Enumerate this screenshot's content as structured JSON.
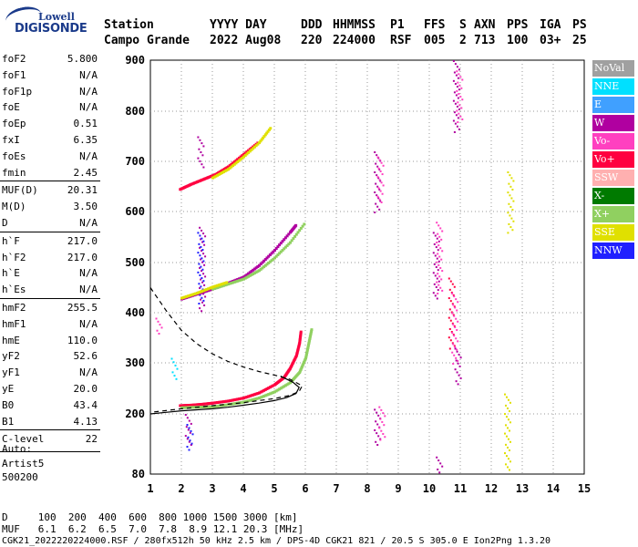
{
  "logo": {
    "line1": "Lowell",
    "line2": "DIGISONDE"
  },
  "header": {
    "station_label": "Station",
    "station_value": "Campo Grande",
    "date_label": "YYYY DAY",
    "date_value": "2022 Aug08",
    "ddd_label": "DDD",
    "ddd_value": "220",
    "time_label": "HHMMSS",
    "time_value": "224000",
    "p1_label": "P1",
    "p1_value": "RSF",
    "ffs_label": "FFS",
    "ffs_value": "005",
    "s_label": "S",
    "s_value": "2",
    "axn_label": "AXN",
    "axn_value": "713",
    "pps_label": "PPS",
    "pps_value": "100",
    "iga_label": "IGA",
    "iga_value": "03+",
    "ps_label": "PS",
    "ps_value": "25"
  },
  "params": [
    {
      "k": "foF2",
      "v": "5.800"
    },
    {
      "k": "foF1",
      "v": "N/A"
    },
    {
      "k": "foF1p",
      "v": "N/A"
    },
    {
      "k": "foE",
      "v": "N/A"
    },
    {
      "k": "foEp",
      "v": "0.51"
    },
    {
      "k": "fxI",
      "v": "6.35"
    },
    {
      "k": "foEs",
      "v": "N/A"
    },
    {
      "k": "fmin",
      "v": "2.45"
    },
    {
      "k": "MUF(D)",
      "v": "20.31"
    },
    {
      "k": "M(D)",
      "v": "3.50"
    },
    {
      "k": "D",
      "v": "N/A"
    },
    {
      "k": "h`F",
      "v": "217.0"
    },
    {
      "k": "h`F2",
      "v": "217.0"
    },
    {
      "k": "h`E",
      "v": "N/A"
    },
    {
      "k": "h`Es",
      "v": "N/A"
    },
    {
      "k": "hmF2",
      "v": "255.5"
    },
    {
      "k": "hmF1",
      "v": "N/A"
    },
    {
      "k": "hmE",
      "v": "110.0"
    },
    {
      "k": "yF2",
      "v": "52.6"
    },
    {
      "k": "yF1",
      "v": "N/A"
    },
    {
      "k": "yE",
      "v": "20.0"
    },
    {
      "k": "B0",
      "v": "43.4"
    },
    {
      "k": "B1",
      "v": "4.13"
    },
    {
      "k": "C-level",
      "v": "22"
    }
  ],
  "auto": {
    "line1": "Auto:",
    "line2": "Artist5",
    "line3": "500200"
  },
  "legend": [
    {
      "label": "NoVal",
      "color": "#a0a0a0"
    },
    {
      "label": "NNE",
      "color": "#00e0ff"
    },
    {
      "label": "E",
      "color": "#40a0ff"
    },
    {
      "label": "W",
      "color": "#b000a0"
    },
    {
      "label": "Vo-",
      "color": "#ff40c0"
    },
    {
      "label": "Vo+",
      "color": "#ff0040"
    },
    {
      "label": "SSW",
      "color": "#ffb0b0"
    },
    {
      "label": "X-",
      "color": "#007a00"
    },
    {
      "label": "X+",
      "color": "#90d060"
    },
    {
      "label": "SSE",
      "color": "#e0e000"
    },
    {
      "label": "NNW",
      "color": "#2020ff"
    }
  ],
  "bottom": {
    "d_line": "D     100  200  400  600  800 1000 1500 3000 [km]",
    "muf_line": "MUF   6.1  6.2  6.5  7.0  7.8  8.9 12.1 20.3 [MHz]",
    "footer": "CGK21_2022220224000.RSF / 280fx512h 50 kHz 2.5 km / DPS-4D CGK21 821 / 20.5 S 305.0 E Ion2Png 1.3.20"
  },
  "chart_data": {
    "type": "scatter",
    "title": "",
    "xlabel": "",
    "ylabel": "",
    "xlim": [
      1,
      15
    ],
    "ylim": [
      80,
      900
    ],
    "x_ticks": [
      1,
      2,
      3,
      4,
      5,
      6,
      7,
      8,
      9,
      10,
      11,
      12,
      13,
      14,
      15
    ],
    "y_ticks": [
      80,
      200,
      300,
      400,
      500,
      600,
      700,
      800,
      900
    ],
    "grid": "dotted",
    "traces": [
      {
        "name": "Vo-",
        "color": "#ff0040",
        "points": [
          [
            1.95,
            217
          ],
          [
            2.3,
            218
          ],
          [
            2.7,
            220
          ],
          [
            3.0,
            222
          ],
          [
            3.5,
            226
          ],
          [
            4.0,
            232
          ],
          [
            4.5,
            242
          ],
          [
            5.0,
            258
          ],
          [
            5.3,
            272
          ],
          [
            5.5,
            290
          ],
          [
            5.7,
            315
          ],
          [
            5.8,
            340
          ],
          [
            5.85,
            365
          ]
        ]
      },
      {
        "name": "X+",
        "color": "#90d060",
        "points": [
          [
            2.0,
            213
          ],
          [
            2.5,
            214
          ],
          [
            3.0,
            215
          ],
          [
            3.5,
            219
          ],
          [
            4.0,
            224
          ],
          [
            4.5,
            232
          ],
          [
            5.0,
            244
          ],
          [
            5.5,
            262
          ],
          [
            5.8,
            282
          ],
          [
            6.0,
            310
          ],
          [
            6.1,
            340
          ],
          [
            6.2,
            370
          ]
        ]
      },
      {
        "name": "W",
        "color": "#b000a0",
        "points": [
          [
            2.0,
            428
          ],
          [
            2.5,
            438
          ],
          [
            3.0,
            448
          ],
          [
            3.5,
            460
          ],
          [
            4.0,
            472
          ],
          [
            4.5,
            495
          ],
          [
            5.0,
            525
          ],
          [
            5.5,
            560
          ],
          [
            5.7,
            575
          ]
        ]
      },
      {
        "name": "X+",
        "color": "#90d060",
        "points": [
          [
            3.0,
            448
          ],
          [
            3.5,
            458
          ],
          [
            4.0,
            468
          ],
          [
            4.5,
            485
          ],
          [
            5.0,
            510
          ],
          [
            5.5,
            540
          ],
          [
            6.0,
            580
          ]
        ]
      },
      {
        "name": "SSE",
        "color": "#e0e000",
        "points": [
          [
            2.0,
            430
          ],
          [
            2.5,
            440
          ],
          [
            3.0,
            452
          ],
          [
            3.5,
            462
          ]
        ]
      },
      {
        "name": "Vo+",
        "color": "#ff0040",
        "points": [
          [
            1.95,
            645
          ],
          [
            2.3,
            655
          ],
          [
            2.7,
            665
          ],
          [
            3.1,
            675
          ],
          [
            3.5,
            690
          ],
          [
            4.0,
            715
          ],
          [
            4.5,
            740
          ]
        ]
      },
      {
        "name": "SSE",
        "color": "#e0e000",
        "points": [
          [
            3.0,
            668
          ],
          [
            3.5,
            685
          ],
          [
            4.0,
            710
          ],
          [
            4.5,
            738
          ],
          [
            4.9,
            770
          ]
        ]
      }
    ],
    "profile_dashed": [
      [
        1.0,
        450
      ],
      [
        1.5,
        405
      ],
      [
        2.0,
        365
      ],
      [
        2.5,
        338
      ],
      [
        3.0,
        318
      ],
      [
        3.5,
        303
      ],
      [
        4.0,
        292
      ],
      [
        4.5,
        283
      ],
      [
        5.0,
        276
      ],
      [
        5.5,
        268
      ],
      [
        5.9,
        255
      ],
      [
        5.8,
        244
      ],
      [
        5.5,
        236
      ],
      [
        5.0,
        230
      ],
      [
        4.5,
        226
      ],
      [
        4.0,
        222
      ],
      [
        3.5,
        219
      ],
      [
        3.0,
        216
      ],
      [
        2.5,
        213
      ],
      [
        2.0,
        210
      ],
      [
        1.0,
        203
      ]
    ],
    "profile_solid": [
      [
        1.0,
        200
      ],
      [
        1.5,
        203
      ],
      [
        2.0,
        206
      ],
      [
        2.5,
        208
      ],
      [
        3.0,
        210
      ],
      [
        3.5,
        213
      ],
      [
        4.0,
        217
      ],
      [
        4.5,
        221
      ],
      [
        5.0,
        226
      ],
      [
        5.4,
        232
      ],
      [
        5.7,
        240
      ],
      [
        5.8,
        252
      ],
      [
        5.6,
        262
      ],
      [
        5.2,
        274
      ]
    ],
    "clusters": [
      {
        "color": "#b000a0",
        "x": 2.65,
        "y0": 405,
        "y1": 570
      },
      {
        "color": "#2020ff",
        "x": 2.6,
        "y0": 420,
        "y1": 560
      },
      {
        "color": "#b000a0",
        "x": 2.6,
        "y0": 690,
        "y1": 750
      },
      {
        "color": "#b000a0",
        "x": 2.2,
        "y0": 140,
        "y1": 200
      },
      {
        "color": "#2020ff",
        "x": 2.25,
        "y0": 130,
        "y1": 180
      },
      {
        "color": "#b000a0",
        "x": 8.3,
        "y0": 600,
        "y1": 720
      },
      {
        "color": "#ff40c0",
        "x": 8.4,
        "y0": 620,
        "y1": 710
      },
      {
        "color": "#b000a0",
        "x": 8.3,
        "y0": 140,
        "y1": 210
      },
      {
        "color": "#ff40c0",
        "x": 8.45,
        "y0": 150,
        "y1": 215
      },
      {
        "color": "#b000a0",
        "x": 10.2,
        "y0": 430,
        "y1": 560
      },
      {
        "color": "#ff40c0",
        "x": 10.3,
        "y0": 440,
        "y1": 580
      },
      {
        "color": "#ff0040",
        "x": 10.7,
        "y0": 330,
        "y1": 470
      },
      {
        "color": "#ff40c0",
        "x": 10.8,
        "y0": 300,
        "y1": 440
      },
      {
        "color": "#b000a0",
        "x": 10.9,
        "y0": 260,
        "y1": 330
      },
      {
        "color": "#b000a0",
        "x": 10.85,
        "y0": 760,
        "y1": 900
      },
      {
        "color": "#ff40c0",
        "x": 10.95,
        "y0": 780,
        "y1": 880
      },
      {
        "color": "#e0e000",
        "x": 12.5,
        "y0": 90,
        "y1": 240
      },
      {
        "color": "#e0e000",
        "x": 12.6,
        "y0": 560,
        "y1": 680
      },
      {
        "color": "#b000a0",
        "x": 10.3,
        "y0": 85,
        "y1": 115
      },
      {
        "color": "#ff40c0",
        "x": 1.25,
        "y0": 360,
        "y1": 390
      },
      {
        "color": "#00e0ff",
        "x": 1.75,
        "y0": 270,
        "y1": 310
      }
    ]
  }
}
